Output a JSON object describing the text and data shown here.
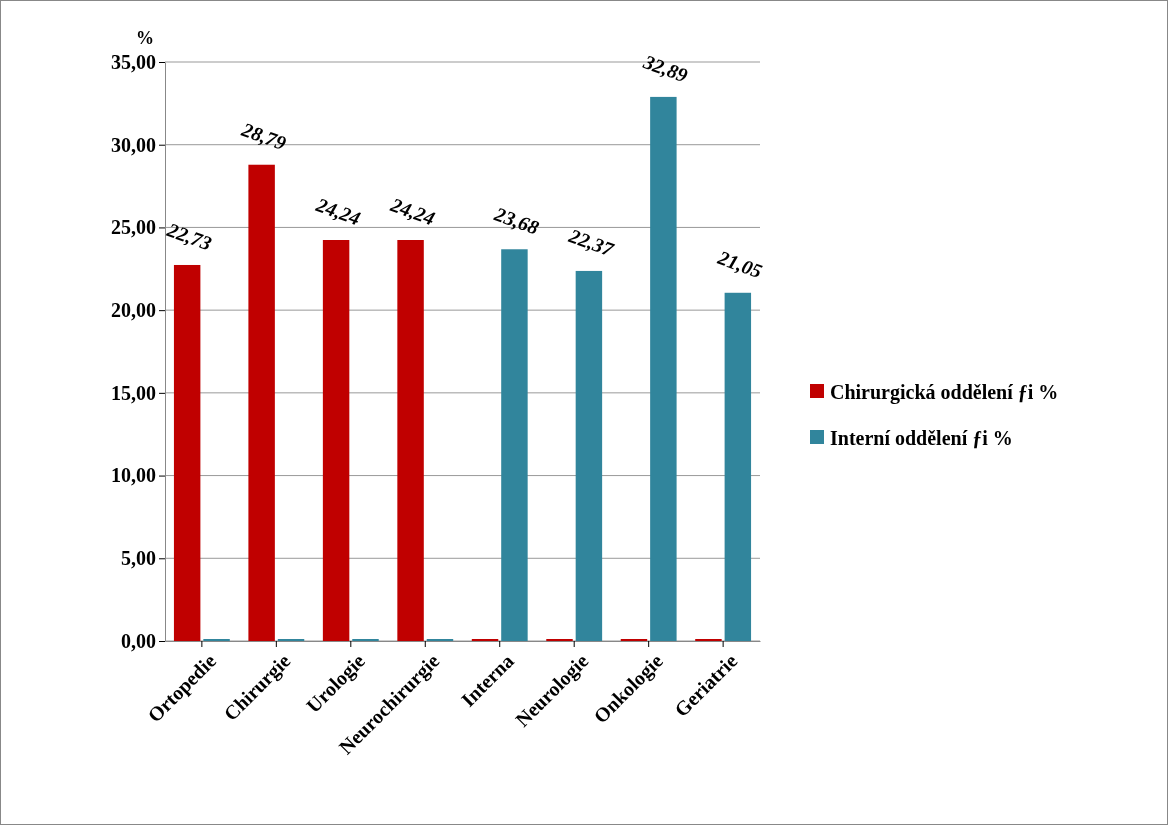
{
  "chart_data": {
    "type": "bar",
    "ylabel": "%",
    "categories": [
      "Ortopedie",
      "Chirurgie",
      "Urologie",
      "Neurochirurgie",
      "Interna",
      "Neurologie",
      "Onkologie",
      "Geriatrie"
    ],
    "series": [
      {
        "name": "Chirurgická oddělení  ƒi %",
        "color": "#c00000",
        "values": [
          22.73,
          28.79,
          24.24,
          24.24,
          0,
          0,
          0,
          0
        ],
        "value_labels": [
          "22,73",
          "28,79",
          "24,24",
          "24,24",
          null,
          null,
          null,
          null
        ]
      },
      {
        "name": "Interní oddělení  ƒi %",
        "color": "#31859c",
        "values": [
          0,
          0,
          0,
          0,
          23.68,
          22.37,
          32.89,
          21.05
        ],
        "value_labels": [
          null,
          null,
          null,
          null,
          "23,68",
          "22,37",
          "32,89",
          "21,05"
        ]
      }
    ],
    "ylim": [
      0,
      35
    ],
    "yticks": [
      {
        "value": 0,
        "label": "0,00"
      },
      {
        "value": 5,
        "label": "5,00"
      },
      {
        "value": 10,
        "label": "10,00"
      },
      {
        "value": 15,
        "label": "15,00"
      },
      {
        "value": 20,
        "label": "20,00"
      },
      {
        "value": 25,
        "label": "25,00"
      },
      {
        "value": 30,
        "label": "30,00"
      },
      {
        "value": 35,
        "label": "35,00"
      }
    ],
    "grid": "y",
    "legend": "right"
  }
}
